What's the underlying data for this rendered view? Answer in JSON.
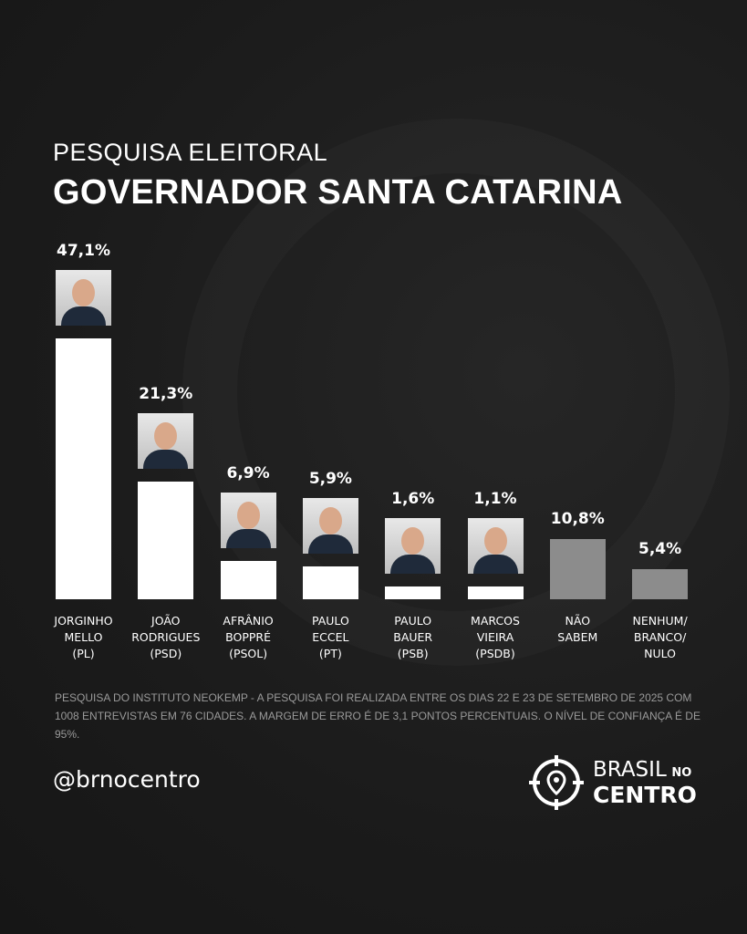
{
  "title_line1": "PESQUISA ELEITORAL",
  "title_line2": "GOVERNADOR SANTA CATARINA",
  "chart_data": {
    "type": "bar",
    "title": "GOVERNADOR SANTA CATARINA",
    "categories": [
      [
        "JORGINHO",
        "MELLO",
        "(PL)"
      ],
      [
        "JOÃO",
        "RODRIGUES",
        "(PSD)"
      ],
      [
        "AFRÂNIO",
        "BOPPRÉ",
        "(PSOL)"
      ],
      [
        "PAULO",
        "ECCEL",
        "(PT)"
      ],
      [
        "PAULO",
        "BAUER",
        "(PSB)"
      ],
      [
        "MARCOS",
        "VIEIRA",
        "(PSDB)"
      ],
      [
        "NÃO",
        "SABEM"
      ],
      [
        "NENHUM/",
        "BRANCO/",
        "NULO"
      ]
    ],
    "values": [
      47.1,
      21.3,
      6.9,
      5.9,
      1.6,
      1.1,
      10.8,
      5.4
    ],
    "value_labels": [
      "47,1%",
      "21,3%",
      "6,9%",
      "5,9%",
      "1,6%",
      "1,1%",
      "10,8%",
      "5,4%"
    ],
    "has_photo": [
      true,
      true,
      true,
      true,
      true,
      true,
      false,
      false
    ],
    "bar_colors": [
      "#ffffff",
      "#ffffff",
      "#ffffff",
      "#ffffff",
      "#ffffff",
      "#ffffff",
      "#8c8c8c",
      "#8c8c8c"
    ],
    "grid": false
  },
  "note": "PESQUISA DO INSTITUTO NEOKEMP - A PESQUISA FOI REALIZADA ENTRE OS DIAS 22 E 23 DE SETEMBRO DE 2025 COM 1008 ENTREVISTAS EM 76 CIDADES. A MARGEM DE ERRO É DE 3,1 PONTOS PERCENTUAIS. O NÍVEL DE CONFIANÇA É DE 95%.",
  "handle": "@brnocentro",
  "logo": {
    "line1": "BRASIL",
    "no": "NO",
    "line2": "CENTRO",
    "icon": "crosshair-location-pin-icon"
  }
}
